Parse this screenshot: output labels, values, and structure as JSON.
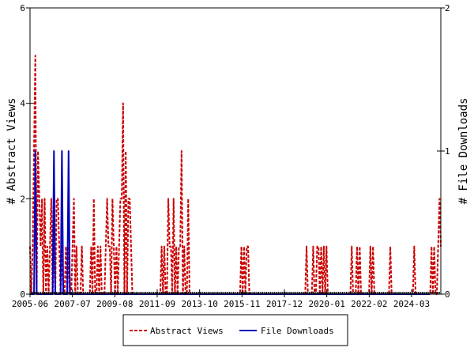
{
  "chart_data": {
    "type": "line",
    "title": "",
    "ylabel": "# Abstract Views",
    "ylabel_right": "# File Downloads",
    "ylim": [
      0,
      6
    ],
    "ylim_right": [
      0,
      2
    ],
    "y_ticks": [
      "0",
      "2",
      "4",
      "6"
    ],
    "y_ticks_right": [
      "0",
      "1",
      "2"
    ],
    "x_tick_labels": [
      "2005-06",
      "2007-07",
      "2009-08",
      "2011-09",
      "2013-10",
      "2015-11",
      "2017-12",
      "2020-01",
      "2022-02",
      "2024-03"
    ],
    "x_period": "monthly, 2005-06 through 2025-12",
    "grid": false,
    "legend_position": "bottom",
    "series": [
      {
        "name": "Abstract Views",
        "axis": "left",
        "color": "#cc0000",
        "dash": "dashed",
        "values": [
          1,
          0,
          1,
          3,
          5,
          0,
          3,
          2,
          1,
          2,
          0,
          2,
          0,
          1,
          0,
          1,
          2,
          0,
          1,
          0,
          2,
          2,
          1,
          0,
          1,
          0,
          0,
          1,
          0,
          1,
          0,
          0,
          1,
          2,
          0,
          1,
          0,
          0,
          0,
          1,
          0,
          0,
          0,
          0,
          0,
          0,
          1,
          0,
          2,
          0,
          0,
          1,
          0,
          1,
          0,
          0,
          0,
          1,
          2,
          1,
          1,
          0,
          2,
          1,
          0,
          1,
          0,
          1,
          2,
          2,
          4,
          0,
          3,
          0,
          2,
          2,
          1,
          0,
          0,
          0,
          0,
          0,
          0,
          0,
          0,
          0,
          0,
          0,
          0,
          0,
          0,
          0,
          0,
          0,
          0,
          0,
          0,
          0,
          0,
          1,
          0,
          1,
          0,
          0,
          2,
          1,
          1,
          0,
          2,
          0,
          1,
          0,
          1,
          1,
          3,
          0,
          1,
          0,
          0,
          2,
          0,
          0,
          0,
          0,
          0,
          0,
          0,
          0,
          0,
          0,
          0,
          0,
          0,
          0,
          0,
          0,
          0,
          0,
          0,
          0,
          0,
          0,
          0,
          0,
          0,
          0,
          0,
          0,
          0,
          0,
          0,
          0,
          0,
          0,
          0,
          0,
          0,
          0,
          0,
          1,
          0,
          1,
          0,
          1,
          1,
          0,
          0,
          0,
          0,
          0,
          0,
          0,
          0,
          0,
          0,
          0,
          0,
          0,
          0,
          0,
          0,
          0,
          0,
          0,
          0,
          0,
          0,
          0,
          0,
          0,
          0,
          0,
          0,
          0,
          0,
          0,
          0,
          0,
          0,
          0,
          0,
          0,
          0,
          0,
          0,
          0,
          0,
          0,
          1,
          0,
          0,
          0,
          0,
          1,
          0,
          0,
          1,
          1,
          0,
          1,
          0,
          1,
          0,
          1,
          0,
          0,
          0,
          0,
          0,
          0,
          0,
          0,
          0,
          0,
          0,
          0,
          0,
          0,
          0,
          0,
          0,
          0,
          1,
          0,
          0,
          0,
          1,
          0,
          1,
          0,
          0,
          0,
          0,
          0,
          0,
          0,
          1,
          0,
          1,
          0,
          0,
          0,
          0,
          0,
          0,
          0,
          0,
          0,
          0,
          0,
          0,
          1,
          0,
          0,
          0,
          0,
          0,
          0,
          0,
          0,
          0,
          0,
          0,
          0,
          0,
          0,
          0,
          0,
          0,
          1,
          0,
          0,
          0,
          0,
          0,
          0,
          0,
          0,
          0,
          0,
          0,
          0,
          1,
          0,
          1,
          0,
          0,
          1,
          2,
          1
        ]
      },
      {
        "name": "File Downloads",
        "axis": "right",
        "color": "#0000bb",
        "dash": "solid",
        "values": [
          0,
          0,
          0,
          0,
          1,
          0,
          0,
          0,
          0,
          0,
          0,
          0,
          0,
          0,
          0,
          0,
          0,
          0,
          1,
          0,
          0,
          0,
          0,
          0,
          1,
          0,
          0,
          0,
          0,
          1,
          0,
          0,
          0,
          0,
          0,
          0,
          0,
          0,
          0,
          0,
          0,
          0,
          0,
          0,
          0,
          0,
          0,
          0,
          0,
          0,
          0,
          0,
          0,
          0,
          0,
          0,
          0,
          0,
          0,
          0,
          0,
          0,
          0,
          0,
          0,
          0,
          0,
          0,
          0,
          0,
          0,
          0,
          0,
          0,
          0,
          0,
          0,
          0,
          0,
          0,
          0,
          0,
          0,
          0,
          0,
          0,
          0,
          0,
          0,
          0,
          0,
          0,
          0,
          0,
          0,
          0,
          0,
          0,
          0,
          0,
          0,
          0,
          0,
          0,
          0,
          0,
          0,
          0,
          0,
          0,
          0,
          0,
          0,
          0,
          0,
          0,
          0,
          0,
          0,
          0,
          0,
          0,
          0,
          0,
          0,
          0,
          0,
          0,
          0,
          0,
          0,
          0,
          0,
          0,
          0,
          0,
          0,
          0,
          0,
          0,
          0,
          0,
          0,
          0,
          0,
          0,
          0,
          0,
          0,
          0,
          0,
          0,
          0,
          0,
          0,
          0,
          0,
          0,
          0,
          0,
          0,
          0,
          0,
          0,
          0,
          0,
          0,
          0,
          0,
          0,
          0,
          0,
          0,
          0,
          0,
          0,
          0,
          0,
          0,
          0,
          0,
          0,
          0,
          0,
          0,
          0,
          0,
          0,
          0,
          0,
          0,
          0,
          0,
          0,
          0,
          0,
          0,
          0,
          0,
          0,
          0,
          0,
          0,
          0,
          0,
          0,
          0,
          0,
          0,
          0,
          0,
          0,
          0,
          0,
          0,
          0,
          0,
          0,
          0,
          0,
          0,
          0,
          0,
          0,
          0,
          0,
          0,
          0,
          0,
          0,
          0,
          0,
          0,
          0,
          0,
          0,
          0,
          0,
          0,
          0,
          0,
          0,
          0,
          0,
          0,
          0,
          0,
          0,
          0,
          0,
          0,
          0,
          0,
          0,
          0,
          0,
          0,
          0,
          0,
          0,
          0,
          0,
          0,
          0,
          0,
          0,
          0,
          0,
          0,
          0,
          0,
          0,
          0,
          0,
          0,
          0,
          0,
          0,
          0,
          0,
          0,
          0,
          0,
          0,
          0,
          0,
          0,
          0,
          0,
          0,
          0,
          0,
          0,
          0,
          0,
          0,
          0,
          0,
          0,
          0,
          0
        ]
      }
    ]
  }
}
